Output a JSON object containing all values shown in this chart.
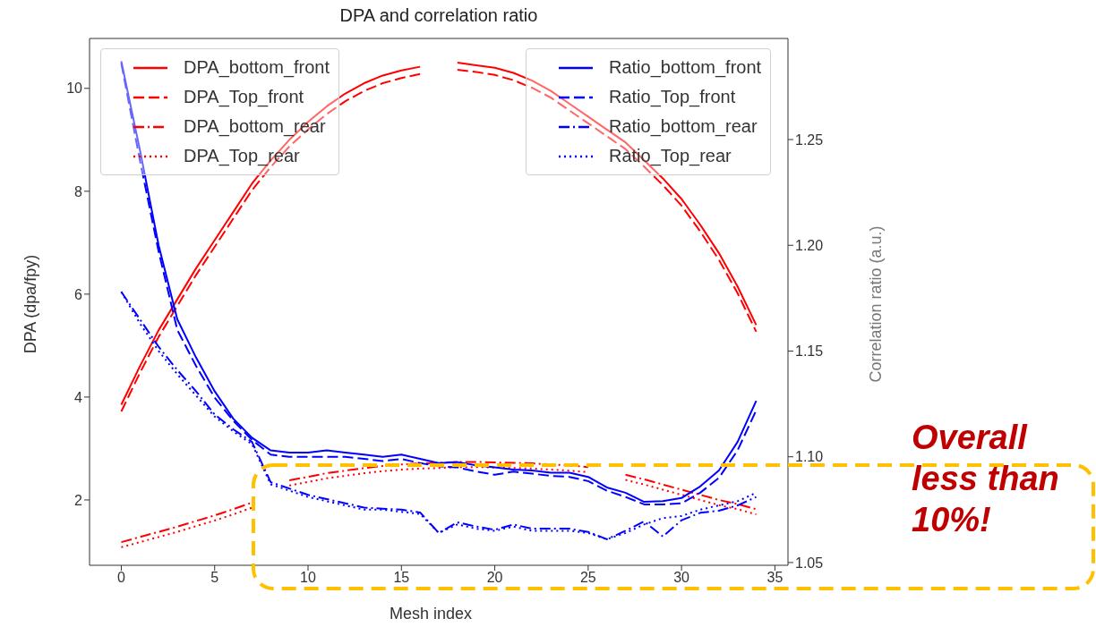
{
  "chart_data": {
    "type": "line",
    "title": "DPA and correlation ratio",
    "xlabel": "Mesh index",
    "ylabel": "DPA (dpa/fpy)",
    "y2label": "Correlation ratio (a.u.)",
    "x": [
      0,
      1,
      2,
      3,
      4,
      5,
      6,
      7,
      8,
      9,
      10,
      11,
      12,
      13,
      14,
      15,
      16,
      17,
      18,
      19,
      20,
      21,
      22,
      23,
      24,
      25,
      26,
      27,
      28,
      29,
      30,
      31,
      32,
      33,
      34
    ],
    "xlim": [
      -1.7,
      35.7
    ],
    "xticks": [
      0,
      5,
      10,
      15,
      20,
      25,
      30,
      35
    ],
    "ylim": [
      0.73,
      10.97
    ],
    "yticks": [
      2,
      4,
      6,
      8,
      10
    ],
    "y2lim": [
      1.0487,
      1.2978
    ],
    "y2ticks": [
      1.05,
      {
        "value": 1.1,
        "label": "1.10"
      },
      1.15,
      {
        "value": 1.2,
        "label": "1.20"
      },
      1.25
    ],
    "grid": false,
    "legend": "top",
    "marker": "none",
    "series": [
      {
        "name": "DPA_bottom_front",
        "color": "#ff0000",
        "line_style": "solid",
        "values": [
          3.85,
          4.6,
          5.3,
          5.9,
          6.5,
          7.05,
          7.6,
          8.15,
          8.6,
          9.0,
          9.35,
          9.65,
          9.9,
          10.1,
          10.25,
          10.35,
          10.42,
          null,
          10.5,
          10.45,
          10.4,
          10.3,
          10.15,
          9.95,
          9.7,
          9.45,
          9.2,
          8.95,
          8.6,
          8.25,
          7.85,
          7.35,
          6.8,
          6.15,
          5.4
        ]
      },
      {
        "name": "DPA_Top_front",
        "color": "#ff0000",
        "line_style": "dashed",
        "values": [
          3.72,
          4.47,
          5.17,
          5.77,
          6.37,
          6.92,
          7.47,
          8.02,
          8.47,
          8.87,
          9.2,
          9.5,
          9.75,
          9.95,
          10.1,
          10.2,
          10.28,
          null,
          10.36,
          10.32,
          10.26,
          10.16,
          10.01,
          9.82,
          9.57,
          9.32,
          9.07,
          8.82,
          8.48,
          8.12,
          7.72,
          7.22,
          6.67,
          6.02,
          5.27
        ]
      },
      {
        "name": "DPA_bottom_rear",
        "color": "#ff0000",
        "line_style": "dashdot",
        "values": [
          1.18,
          1.28,
          1.38,
          1.48,
          1.59,
          1.7,
          1.82,
          1.95,
          null,
          2.38,
          2.45,
          2.52,
          2.57,
          2.62,
          2.66,
          2.69,
          2.71,
          2.72,
          2.74,
          2.74,
          2.73,
          2.72,
          2.71,
          2.69,
          2.67,
          2.64,
          null,
          2.49,
          2.4,
          2.3,
          2.2,
          2.1,
          2.0,
          1.92,
          1.82
        ]
      },
      {
        "name": "DPA_Top_rear",
        "color": "#ff0000",
        "line_style": "dotted",
        "values": [
          1.08,
          1.18,
          1.28,
          1.38,
          1.49,
          1.6,
          1.72,
          1.85,
          null,
          2.28,
          2.35,
          2.42,
          2.47,
          2.52,
          2.56,
          2.59,
          2.61,
          2.62,
          2.64,
          2.64,
          2.63,
          2.62,
          2.61,
          2.59,
          2.57,
          2.54,
          null,
          2.39,
          2.3,
          2.2,
          2.1,
          2.0,
          1.9,
          1.82,
          1.72
        ]
      },
      {
        "name": "Ratio_bottom_front",
        "color": "#0000ff",
        "line_style": "solid",
        "axis": "y2",
        "values": [
          1.287,
          1.245,
          1.2,
          1.165,
          1.147,
          1.131,
          1.118,
          1.109,
          1.103,
          1.102,
          1.102,
          1.103,
          1.102,
          1.101,
          1.1,
          1.101,
          1.099,
          1.097,
          1.0975,
          1.096,
          1.095,
          1.094,
          1.0935,
          1.0925,
          1.0925,
          1.0905,
          1.0855,
          1.083,
          1.0787,
          1.079,
          1.0805,
          1.086,
          1.0935,
          1.107,
          1.1265
        ]
      },
      {
        "name": "Ratio_Top_front",
        "color": "#0000ff",
        "line_style": "dashed",
        "axis": "y2",
        "values": [
          1.286,
          1.24,
          1.197,
          1.16,
          1.143,
          1.128,
          1.117,
          1.108,
          1.101,
          1.1,
          1.1,
          1.1,
          1.1,
          1.099,
          1.098,
          1.099,
          1.097,
          1.0955,
          1.095,
          1.093,
          1.0915,
          1.093,
          1.092,
          1.091,
          1.0905,
          1.0885,
          1.084,
          1.081,
          1.0775,
          1.0775,
          1.078,
          1.083,
          1.09,
          1.103,
          1.122
        ]
      },
      {
        "name": "Ratio_bottom_rear",
        "color": "#0000ff",
        "line_style": "dashdot",
        "axis": "y2",
        "values": [
          1.178,
          1.165,
          1.152,
          1.141,
          1.131,
          1.12,
          1.113,
          1.107,
          1.088,
          1.085,
          1.082,
          1.08,
          1.078,
          1.076,
          1.0755,
          1.075,
          1.0737,
          1.064,
          1.069,
          1.067,
          1.0655,
          1.068,
          1.066,
          1.066,
          1.066,
          1.0645,
          1.061,
          1.065,
          1.0695,
          1.0623,
          1.07,
          1.0735,
          1.0745,
          1.077,
          1.081
        ]
      },
      {
        "name": "Ratio_Top_rear",
        "color": "#0000ff",
        "line_style": "dotted",
        "axis": "y2",
        "values": [
          1.178,
          1.163,
          1.15,
          1.139,
          1.129,
          1.119,
          1.112,
          1.106,
          1.087,
          1.084,
          1.081,
          1.079,
          1.077,
          1.075,
          1.075,
          1.074,
          1.073,
          1.064,
          1.068,
          1.066,
          1.065,
          1.067,
          1.065,
          1.065,
          1.065,
          1.064,
          1.061,
          1.064,
          1.068,
          1.071,
          1.072,
          1.075,
          1.077,
          1.079,
          1.083
        ]
      }
    ],
    "annotations": [
      "Overall less than 10%!"
    ]
  }
}
